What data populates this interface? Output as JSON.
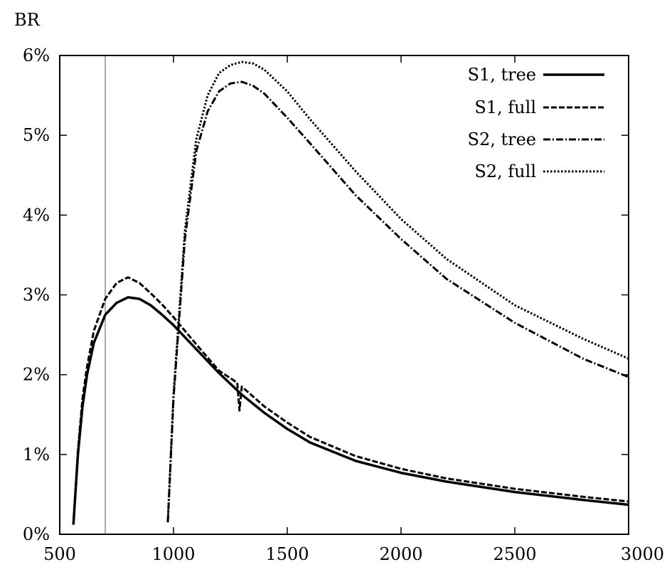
{
  "chart_data": {
    "type": "line",
    "title": "",
    "ylabel": "BR",
    "xlabel": "",
    "xlim": [
      500,
      3000
    ],
    "ylim": [
      0,
      6
    ],
    "x_ticks": [
      500,
      1000,
      1500,
      2000,
      2500,
      3000
    ],
    "x_tick_labels": [
      "500",
      "1000",
      "1500",
      "2000",
      "2500",
      "3000"
    ],
    "y_ticks": [
      0,
      1,
      2,
      3,
      4,
      5,
      6
    ],
    "y_tick_labels": [
      "0%",
      "1%",
      "2%",
      "3%",
      "4%",
      "5%",
      "6%"
    ],
    "grid": false,
    "legend_position": "top-right",
    "reference_line_x": 700,
    "series": [
      {
        "name": "S1, tree",
        "style": "solid",
        "x": [
          560,
          580,
          600,
          620,
          650,
          700,
          750,
          800,
          850,
          900,
          950,
          1000,
          1100,
          1200,
          1300,
          1400,
          1500,
          1600,
          1800,
          2000,
          2200,
          2500,
          2800,
          3000
        ],
        "y": [
          0.12,
          1.0,
          1.6,
          2.0,
          2.4,
          2.75,
          2.9,
          2.97,
          2.95,
          2.87,
          2.75,
          2.62,
          2.32,
          2.02,
          1.75,
          1.52,
          1.32,
          1.15,
          0.92,
          0.77,
          0.66,
          0.53,
          0.43,
          0.37
        ]
      },
      {
        "name": "S1, full",
        "style": "dashed",
        "x": [
          560,
          580,
          600,
          620,
          650,
          700,
          750,
          800,
          850,
          900,
          950,
          1000,
          1100,
          1200,
          1280,
          1290,
          1300,
          1400,
          1500,
          1600,
          1800,
          2000,
          2200,
          2500,
          2800,
          3000
        ],
        "y": [
          0.12,
          1.05,
          1.7,
          2.1,
          2.55,
          2.95,
          3.15,
          3.22,
          3.15,
          3.02,
          2.88,
          2.72,
          2.38,
          2.05,
          1.9,
          1.55,
          1.85,
          1.6,
          1.4,
          1.22,
          0.98,
          0.82,
          0.7,
          0.57,
          0.47,
          0.41
        ]
      },
      {
        "name": "S2, tree",
        "style": "dashdot",
        "x": [
          975,
          1000,
          1050,
          1100,
          1150,
          1200,
          1250,
          1300,
          1350,
          1400,
          1500,
          1600,
          1800,
          2000,
          2200,
          2500,
          2800,
          3000
        ],
        "y": [
          0.15,
          1.7,
          3.7,
          4.8,
          5.3,
          5.55,
          5.65,
          5.67,
          5.62,
          5.52,
          5.22,
          4.9,
          4.25,
          3.7,
          3.2,
          2.65,
          2.2,
          1.97
        ]
      },
      {
        "name": "S2, full",
        "style": "dotted",
        "x": [
          975,
          1000,
          1050,
          1100,
          1150,
          1200,
          1250,
          1300,
          1350,
          1400,
          1500,
          1600,
          1800,
          2000,
          2200,
          2500,
          2800,
          3000
        ],
        "y": [
          0.15,
          1.75,
          3.8,
          4.95,
          5.5,
          5.78,
          5.88,
          5.92,
          5.9,
          5.82,
          5.55,
          5.2,
          4.55,
          3.95,
          3.45,
          2.87,
          2.45,
          2.2
        ]
      }
    ]
  }
}
